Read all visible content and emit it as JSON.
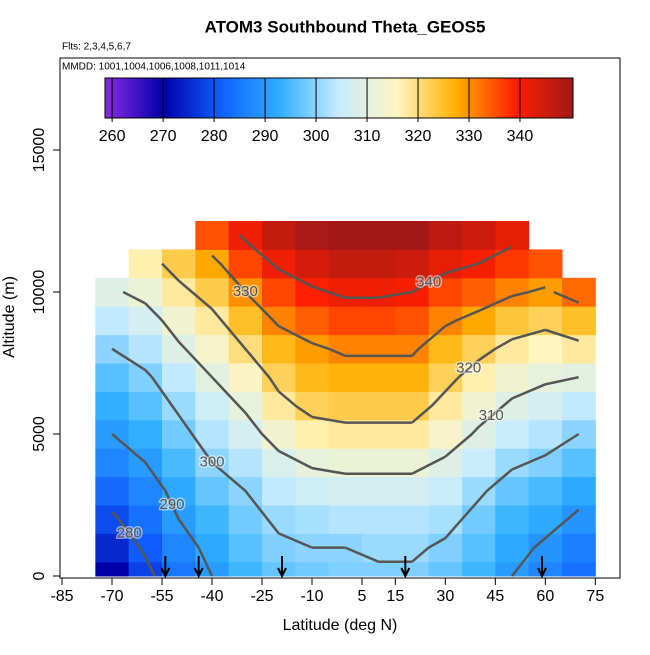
{
  "chart_data": {
    "type": "contour",
    "title": "ATOM3 Southbound Theta_GEOS5",
    "subtitle": "Flts: 2,3,4,5,6,7",
    "note": "MMDD: 1001,1004,1006,1008,1011,1014",
    "xlabel": "Latitude (deg N)",
    "ylabel": "Altitude (m)",
    "xlim": [
      -85,
      83
    ],
    "ylim": [
      0,
      18240
    ],
    "xticks": [
      -85,
      -70,
      -55,
      -40,
      -25,
      -10,
      5,
      15,
      30,
      45,
      60,
      75
    ],
    "yticks": [
      0,
      5000,
      10000,
      15000
    ],
    "x": [
      -70,
      -60,
      -50,
      -40,
      -30,
      -20,
      -10,
      0,
      10,
      20,
      30,
      40,
      50,
      60,
      70
    ],
    "y": [
      0,
      1000,
      2000,
      3000,
      4000,
      5000,
      6000,
      7000,
      8000,
      9000,
      10000,
      11000,
      12000
    ],
    "z": [
      [
        270,
        278,
        285,
        290,
        294,
        297,
        298,
        299,
        299,
        299,
        297,
        294,
        290,
        287,
        284
      ],
      [
        275,
        281,
        287,
        292,
        296,
        299,
        300,
        300,
        301,
        301,
        299,
        296,
        292,
        289,
        286
      ],
      [
        279,
        284,
        290,
        294,
        298,
        301,
        302,
        303,
        303,
        303,
        302,
        298,
        294,
        292,
        289
      ],
      [
        283,
        287,
        292,
        297,
        300,
        304,
        306,
        307,
        307,
        307,
        305,
        301,
        297,
        295,
        292
      ],
      [
        287,
        290,
        295,
        300,
        303,
        308,
        311,
        312,
        312,
        312,
        309,
        305,
        301,
        299,
        296
      ],
      [
        290,
        293,
        298,
        303,
        307,
        313,
        317,
        318,
        318,
        318,
        314,
        309,
        305,
        303,
        300
      ],
      [
        293,
        296,
        301,
        306,
        311,
        318,
        322,
        323,
        323,
        323,
        318,
        313,
        309,
        307,
        304
      ],
      [
        296,
        299,
        304,
        310,
        315,
        322,
        326,
        327,
        327,
        327,
        322,
        317,
        313,
        311,
        310
      ],
      [
        300,
        303,
        309,
        314,
        320,
        326,
        329,
        331,
        331,
        331,
        326,
        322,
        318,
        316,
        318
      ],
      [
        304,
        307,
        313,
        318,
        325,
        331,
        334,
        336,
        336,
        335,
        331,
        328,
        324,
        322,
        325
      ],
      [
        309,
        312,
        318,
        323,
        330,
        336,
        339,
        341,
        341,
        340,
        336,
        334,
        331,
        329,
        333
      ],
      [
        null,
        317,
        323,
        328,
        336,
        341,
        344,
        346,
        346,
        345,
        342,
        340,
        337,
        335,
        null
      ],
      [
        null,
        null,
        null,
        335,
        341,
        346,
        349,
        350,
        350,
        350,
        347,
        345,
        342,
        null,
        null
      ]
    ],
    "levels": [
      270,
      280,
      290,
      300,
      310,
      320,
      330,
      340
    ],
    "clim": [
      258.6,
      350.4
    ],
    "colorbar_ticks": [
      260,
      270,
      280,
      290,
      300,
      310,
      320,
      330,
      340
    ],
    "colors": [
      "#8a2be2",
      "#0000aa",
      "#1060ff",
      "#30b0ff",
      "#c8ecff",
      "#fff5c0",
      "#ffb000",
      "#ff2000",
      "#a01818"
    ],
    "contour_color": "#555555",
    "profiles": [
      -54,
      -44,
      -19,
      18,
      59
    ]
  }
}
